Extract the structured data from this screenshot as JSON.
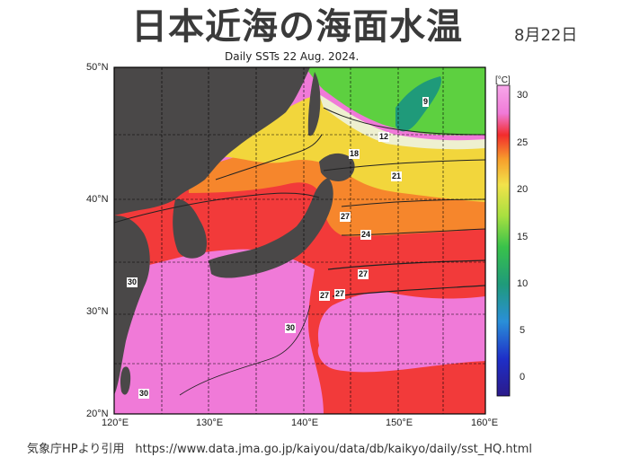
{
  "title": "日本近海の海面水温",
  "date": "8月22日",
  "subtitle": "Daily SSTs 22 Aug. 2024.",
  "source": {
    "credit": "気象庁HPより引用",
    "url": "https://www.data.jma.go.jp/kaiyou/data/db/kaikyo/daily/sst_HQ.html"
  },
  "axes": {
    "lat_labels": [
      "50°N",
      "40°N",
      "30°N",
      "20°N"
    ],
    "lon_labels": [
      "120°E",
      "130°E",
      "140°E",
      "150°E",
      "160°E"
    ]
  },
  "colorbar": {
    "unit": "[°C]",
    "ticks": [
      "30",
      "25",
      "20",
      "15",
      "10",
      "5",
      "0"
    ]
  },
  "isotherm_labels": [
    "9",
    "12",
    "18",
    "21",
    "27",
    "24",
    "27",
    "27",
    "27",
    "30",
    "30",
    "30"
  ],
  "colors": {
    "land": "#4a4848",
    "sst_30": "#f07ad8",
    "sst_27": "#f22c2c",
    "sst_24": "#f7a02c",
    "sst_21": "#f2e24a",
    "sst_15": "#6fdc3a",
    "sst_9": "#1f9a7a"
  }
}
